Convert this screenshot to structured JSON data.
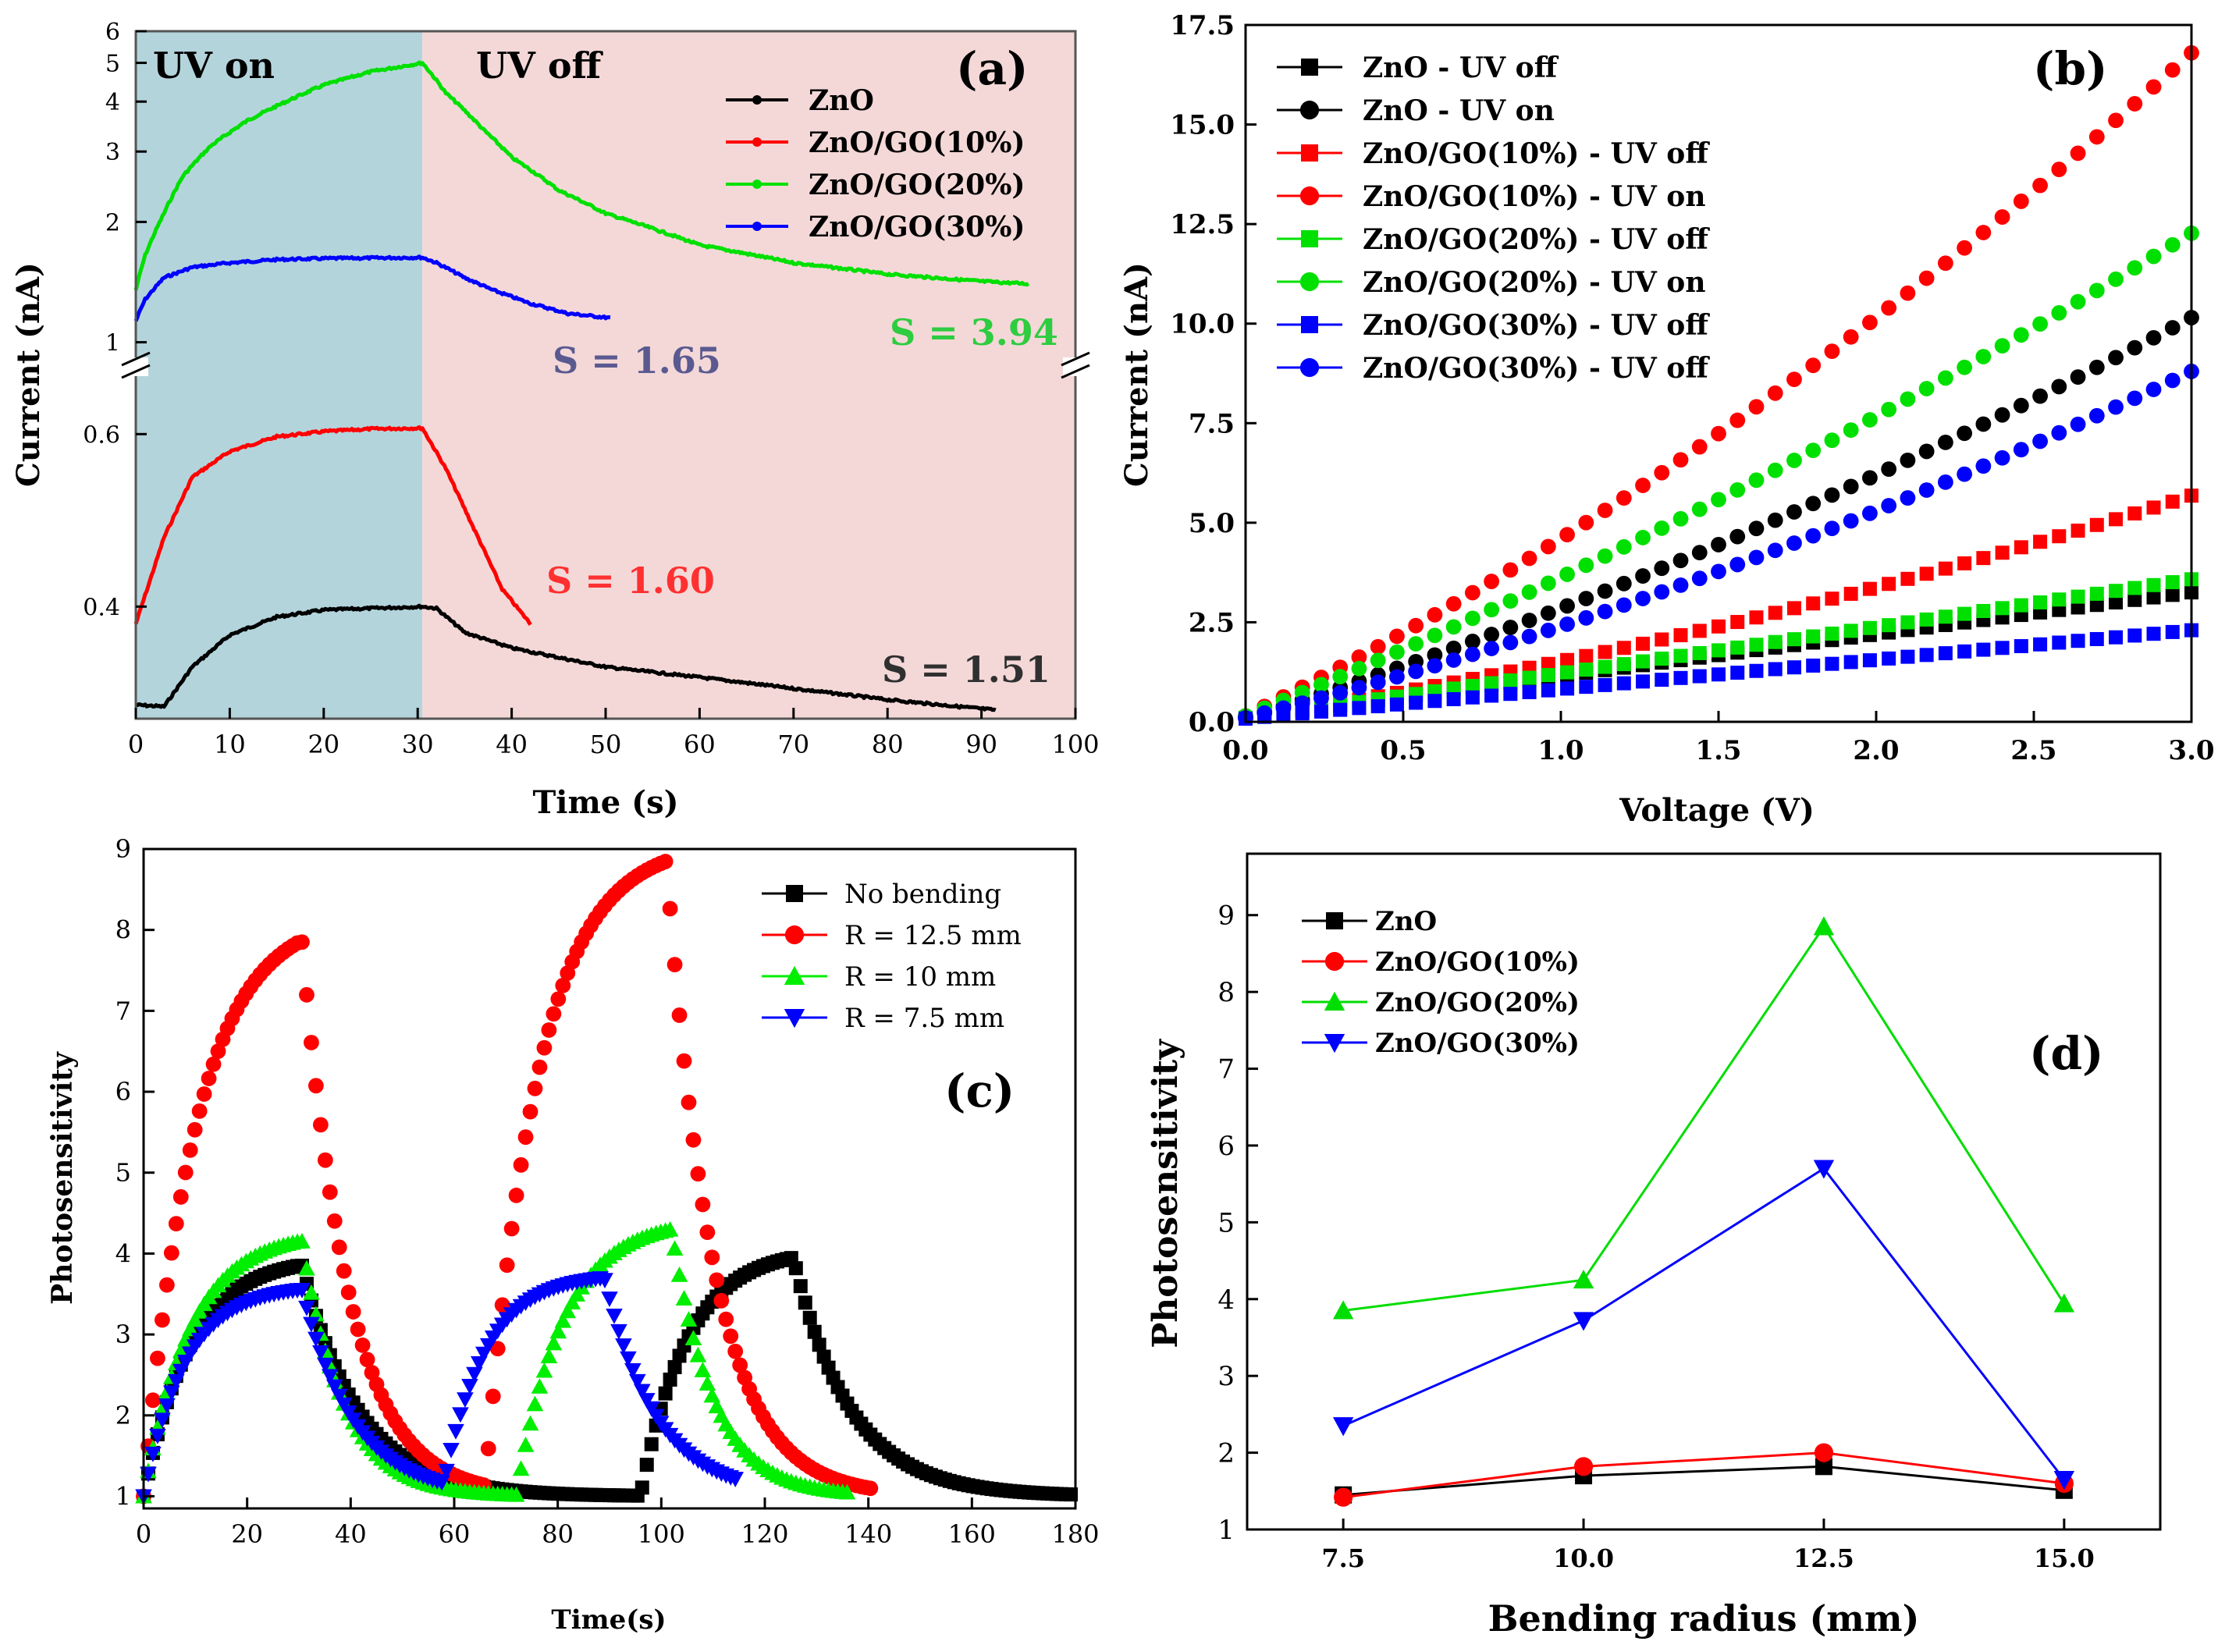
{
  "figure": {
    "colors": {
      "black": "#000000",
      "red": "#ff0000",
      "green": "#00e000",
      "blue": "#0000ff",
      "shadeOn": "#b4d4dc",
      "shadeOff": "#f4d8d8",
      "darkRed": "#c03030",
      "darkGreen": "#2ecc40",
      "darkBlue": "#4848e0",
      "slate": "#5a5a90"
    }
  },
  "chart_data": [
    {
      "id": "a",
      "type": "line",
      "panel_label": "(a)",
      "xlabel": "Time (s)",
      "ylabel": "Current (nA)",
      "xlim": [
        0,
        100
      ],
      "xticks": [
        0,
        10,
        20,
        30,
        40,
        50,
        60,
        70,
        80,
        90,
        100
      ],
      "upper_yscale": "log",
      "upper_ylim": [
        0.95,
        6
      ],
      "upper_yticks": [
        1,
        2,
        3,
        4,
        5,
        6
      ],
      "lower_ylim": [
        0.27,
        0.66
      ],
      "lower_yticks": [
        0.4,
        0.6
      ],
      "region_labels": [
        "UV on",
        "UV off"
      ],
      "uv_switch_time": 30.5,
      "series": [
        {
          "name": "ZnO",
          "axis": "lower",
          "color": "#000000",
          "t_end": 91.5,
          "points": [
            [
              0,
              0.286
            ],
            [
              3,
              0.284
            ],
            [
              6,
              0.33
            ],
            [
              10,
              0.367
            ],
            [
              15,
              0.388
            ],
            [
              20,
              0.396
            ],
            [
              25,
              0.398
            ],
            [
              30.5,
              0.4
            ],
            [
              32,
              0.398
            ],
            [
              35,
              0.37
            ],
            [
              40,
              0.352
            ],
            [
              50,
              0.33
            ],
            [
              60,
              0.318
            ],
            [
              70,
              0.305
            ],
            [
              80,
              0.292
            ],
            [
              91.5,
              0.28
            ]
          ]
        },
        {
          "name": "ZnO/GO(10%)",
          "axis": "lower",
          "color": "#ff0000",
          "t_end": 42,
          "points": [
            [
              0,
              0.38
            ],
            [
              3,
              0.48
            ],
            [
              6,
              0.55
            ],
            [
              10,
              0.58
            ],
            [
              15,
              0.597
            ],
            [
              20,
              0.603
            ],
            [
              25,
              0.606
            ],
            [
              30.5,
              0.607
            ],
            [
              33,
              0.56
            ],
            [
              36,
              0.49
            ],
            [
              39,
              0.42
            ],
            [
              42,
              0.38
            ]
          ]
        },
        {
          "name": "ZnO/GO(20%)",
          "axis": "upper",
          "color": "#00e000",
          "t_end": 95,
          "points": [
            [
              0,
              1.35
            ],
            [
              1,
              1.65
            ],
            [
              3,
              2.1
            ],
            [
              5,
              2.6
            ],
            [
              8,
              3.1
            ],
            [
              12,
              3.6
            ],
            [
              16,
              4.0
            ],
            [
              20,
              4.4
            ],
            [
              25,
              4.75
            ],
            [
              30.5,
              5.0
            ],
            [
              33,
              4.2
            ],
            [
              37,
              3.4
            ],
            [
              40,
              2.9
            ],
            [
              45,
              2.4
            ],
            [
              50,
              2.1
            ],
            [
              60,
              1.75
            ],
            [
              70,
              1.58
            ],
            [
              80,
              1.48
            ],
            [
              90,
              1.42
            ],
            [
              95,
              1.4
            ]
          ]
        },
        {
          "name": "ZnO/GO(30%)",
          "axis": "upper",
          "color": "#0000ff",
          "t_end": 50.5,
          "points": [
            [
              0,
              1.13
            ],
            [
              1,
              1.28
            ],
            [
              3,
              1.45
            ],
            [
              6,
              1.54
            ],
            [
              10,
              1.58
            ],
            [
              15,
              1.61
            ],
            [
              20,
              1.62
            ],
            [
              30.5,
              1.63
            ],
            [
              32,
              1.58
            ],
            [
              35,
              1.45
            ],
            [
              38,
              1.35
            ],
            [
              42,
              1.25
            ],
            [
              46,
              1.18
            ],
            [
              50.5,
              1.15
            ]
          ]
        }
      ],
      "legend": [
        "ZnO",
        "ZnO/GO(10%)",
        "ZnO/GO(20%)",
        "ZnO/GO(30%)"
      ],
      "annotations": [
        {
          "text": "S = 1.65",
          "color": "#5a5a90"
        },
        {
          "text": "S = 3.94",
          "color": "#2ecc40"
        },
        {
          "text": "S = 1.60",
          "color": "#ff3030"
        },
        {
          "text": "S = 1.51",
          "color": "#303030"
        }
      ]
    },
    {
      "id": "b",
      "type": "scatter",
      "panel_label": "(b)",
      "xlabel": "Voltage (V)",
      "ylabel": "Current (nA)",
      "xlim": [
        0,
        3.0
      ],
      "ylim": [
        0,
        17.5
      ],
      "xticks": [
        "0.0",
        "0.5",
        "1.0",
        "1.5",
        "2.0",
        "2.5",
        "3.0"
      ],
      "yticks": [
        "0.0",
        "2.5",
        "5.0",
        "7.5",
        "10.0",
        "12.5",
        "15.0",
        "17.5"
      ],
      "n_points": 51,
      "model": "I = a*V + b*V^2 + c",
      "series": [
        {
          "name": "ZnO - UV off",
          "marker": "square",
          "color": "#000000",
          "a": 1.05,
          "b": 0.0,
          "c": 0.1
        },
        {
          "name": "ZnO - UV on",
          "marker": "circle",
          "color": "#000000",
          "a": 2.45,
          "b": 0.3,
          "c": 0.1
        },
        {
          "name": "ZnO/GO(10%) - UV off",
          "marker": "square",
          "color": "#ff0000",
          "a": 1.2,
          "b": 0.22,
          "c": 0.1
        },
        {
          "name": "ZnO/GO(10%) - UV on",
          "marker": "circle",
          "color": "#ff0000",
          "a": 3.9,
          "b": 0.55,
          "c": 0.15
        },
        {
          "name": "ZnO/GO(20%) - UV off",
          "marker": "square",
          "color": "#00e000",
          "a": 1.1,
          "b": 0.02,
          "c": 0.1
        },
        {
          "name": "ZnO/GO(20%) - UV on",
          "marker": "circle",
          "color": "#00e000",
          "a": 3.2,
          "b": 0.28,
          "c": 0.15
        },
        {
          "name": "ZnO/GO(30%) - UV off",
          "marker": "square",
          "color": "#0000ff",
          "a": 0.74,
          "b": 0.0,
          "c": 0.08
        },
        {
          "name": "ZnO/GO(30%) - UV off",
          "marker": "circle",
          "color": "#0000ff",
          "a": 2.0,
          "b": 0.3,
          "c": 0.1
        }
      ]
    },
    {
      "id": "c",
      "type": "scatter",
      "panel_label": "(c)",
      "xlabel": "Time(s)",
      "ylabel": "Photosensitivity",
      "xlim": [
        0,
        180
      ],
      "ylim": [
        0.85,
        9
      ],
      "xticks": [
        0,
        20,
        40,
        60,
        80,
        100,
        120,
        140,
        160,
        180
      ],
      "yticks": [
        1,
        2,
        3,
        4,
        5,
        6,
        7,
        8,
        9
      ],
      "series": [
        {
          "name": "No bending",
          "marker": "square",
          "color": "#000000",
          "start": 1.0,
          "cycles": [
            [
              0,
              30,
              3.85
            ],
            [
              96,
              125.5,
              3.95
            ]
          ],
          "off_end": 180,
          "tau_on": 9,
          "tau_off": 11,
          "floor": 1.0
        },
        {
          "name": "R = 12.5 mm",
          "marker": "circle",
          "color": "#ff0000",
          "start": 1.0,
          "cycles": [
            [
              0,
              30,
              7.85
            ],
            [
              66,
              101,
              8.85
            ]
          ],
          "off_end": 141,
          "tau_on": 10,
          "tau_off": 9,
          "floor": 1.0
        },
        {
          "name": "R = 10 mm",
          "marker": "triangle-up",
          "color": "#00ee00",
          "start": 1.0,
          "cycles": [
            [
              0,
              30,
              4.15
            ],
            [
              72,
              102,
              4.3
            ]
          ],
          "off_end": 136,
          "tau_on": 9,
          "tau_off": 8,
          "floor": 1.0
        },
        {
          "name": "R = 7.5 mm",
          "marker": "triangle-down",
          "color": "#0000ff",
          "start": 1.0,
          "cycles": [
            [
              0,
              30,
              3.55
            ],
            [
              58,
              89,
              3.7
            ]
          ],
          "off_end": 115,
          "tau_on": 8,
          "tau_off": 10,
          "floor": 1.0
        }
      ]
    },
    {
      "id": "d",
      "type": "line",
      "panel_label": "(d)",
      "xlabel": "Bending radius (mm)",
      "ylabel": "Photosensitivity",
      "xlim": [
        6.5,
        16.0
      ],
      "ylim": [
        1,
        9.8
      ],
      "xticks": [
        "7.5",
        "10.0",
        "12.5",
        "15.0"
      ],
      "yticks": [
        1,
        2,
        3,
        4,
        5,
        6,
        7,
        8,
        9
      ],
      "x": [
        7.5,
        10.0,
        12.5,
        15.0
      ],
      "series": [
        {
          "name": "ZnO",
          "marker": "square",
          "color": "#000000",
          "values": [
            1.45,
            1.7,
            1.82,
            1.51
          ]
        },
        {
          "name": "ZnO/GO(10%)",
          "marker": "circle",
          "color": "#ff0000",
          "values": [
            1.42,
            1.82,
            2.0,
            1.6
          ]
        },
        {
          "name": "ZnO/GO(20%)",
          "marker": "triangle-up",
          "color": "#00dd00",
          "values": [
            3.85,
            4.25,
            8.85,
            3.94
          ]
        },
        {
          "name": "ZnO/GO(30%)",
          "marker": "triangle-down",
          "color": "#0000ff",
          "values": [
            2.35,
            3.72,
            5.7,
            1.65
          ]
        }
      ]
    }
  ]
}
